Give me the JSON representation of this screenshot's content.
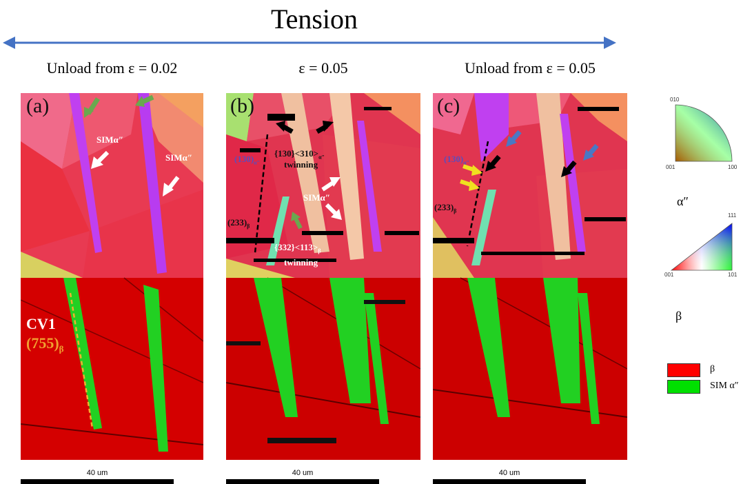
{
  "header": {
    "title": "Tension"
  },
  "columns": [
    {
      "label": "Unload from ε = 0.02",
      "panel": "(a)"
    },
    {
      "label": "ε = 0.05",
      "panel": "(b)"
    },
    {
      "label": "Unload from ε = 0.05",
      "panel": "(c)"
    }
  ],
  "annotations": {
    "a": {
      "sim1": "SIMα″",
      "sim2": "SIMα″",
      "cv": "CV1",
      "plane_main": "(755)",
      "plane_sub": "β"
    },
    "b": {
      "p130_main": "(130)",
      "p130_sub": "α″",
      "twin1_a": "{130}<310>",
      "twin1_sub": "α″",
      "twin1_b": "twinning",
      "sim": "SIMα″",
      "p233_main": "(233)",
      "p233_sub": "β",
      "twin2_a": "{332}<113>",
      "twin2_sub": "β",
      "twin2_b": "twinning"
    },
    "c": {
      "p130_main": "(130)",
      "p130_sub": "α″",
      "p233_main": "(233)",
      "p233_sub": "β"
    }
  },
  "scale": {
    "label": "40 um"
  },
  "ipf_keys": {
    "alpha": {
      "label": "α″",
      "corners": [
        "010",
        "001",
        "100"
      ]
    },
    "beta": {
      "label": "β",
      "corners": [
        "111",
        "001",
        "101"
      ]
    }
  },
  "legend": [
    {
      "label": "β",
      "color": "#ff0000"
    },
    {
      "label": "SIM α″",
      "color": "#00e000"
    }
  ]
}
